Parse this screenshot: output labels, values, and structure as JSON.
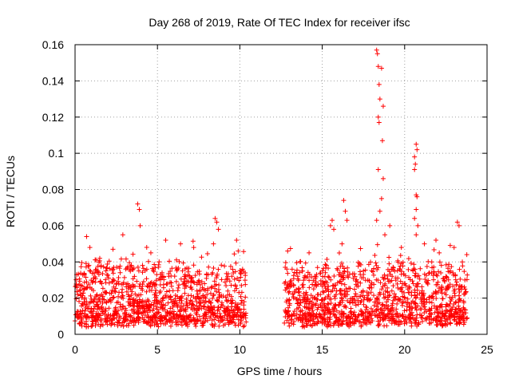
{
  "chart_data": {
    "type": "scatter",
    "title": "Day 268 of 2019, Rate Of TEC Index for receiver ifsc",
    "xlabel": "GPS time / hours",
    "ylabel": "ROTI / TECUs",
    "xlim": [
      0,
      25
    ],
    "ylim": [
      0,
      0.16
    ],
    "xticks": [
      0,
      5,
      10,
      15,
      20,
      25
    ],
    "yticks": [
      0,
      0.02,
      0.04,
      0.06,
      0.08,
      0.1,
      0.12,
      0.14,
      0.16
    ],
    "x_tick_labels": [
      "0",
      "5",
      "10",
      "15",
      "20",
      "25"
    ],
    "y_tick_labels": [
      "0",
      "0.02",
      "0.04",
      "0.06",
      "0.08",
      "0.1",
      "0.12",
      "0.14",
      "0.16"
    ],
    "grid": true,
    "marker": "+",
    "color": "#ff0000",
    "data_gap_hours": [
      10.4,
      12.7
    ],
    "highlights": [
      {
        "x": 0.1,
        "y": 0.033
      },
      {
        "x": 0.7,
        "y": 0.054
      },
      {
        "x": 0.9,
        "y": 0.048
      },
      {
        "x": 1.5,
        "y": 0.042
      },
      {
        "x": 2.3,
        "y": 0.047
      },
      {
        "x": 2.9,
        "y": 0.055
      },
      {
        "x": 3.8,
        "y": 0.072
      },
      {
        "x": 3.9,
        "y": 0.069
      },
      {
        "x": 3.95,
        "y": 0.06
      },
      {
        "x": 4.6,
        "y": 0.045
      },
      {
        "x": 5.5,
        "y": 0.052
      },
      {
        "x": 6.4,
        "y": 0.05
      },
      {
        "x": 7.2,
        "y": 0.048
      },
      {
        "x": 8.5,
        "y": 0.064
      },
      {
        "x": 8.6,
        "y": 0.062
      },
      {
        "x": 8.7,
        "y": 0.058
      },
      {
        "x": 8.4,
        "y": 0.05
      },
      {
        "x": 9.8,
        "y": 0.052
      },
      {
        "x": 9.9,
        "y": 0.046
      },
      {
        "x": 12.9,
        "y": 0.046
      },
      {
        "x": 13.8,
        "y": 0.035
      },
      {
        "x": 14.2,
        "y": 0.045
      },
      {
        "x": 15.5,
        "y": 0.06
      },
      {
        "x": 15.6,
        "y": 0.063
      },
      {
        "x": 15.7,
        "y": 0.058
      },
      {
        "x": 16.3,
        "y": 0.074
      },
      {
        "x": 16.4,
        "y": 0.068
      },
      {
        "x": 16.5,
        "y": 0.063
      },
      {
        "x": 16.2,
        "y": 0.05
      },
      {
        "x": 17.5,
        "y": 0.035
      },
      {
        "x": 18.3,
        "y": 0.157
      },
      {
        "x": 18.35,
        "y": 0.155
      },
      {
        "x": 18.4,
        "y": 0.148
      },
      {
        "x": 18.45,
        "y": 0.138
      },
      {
        "x": 18.5,
        "y": 0.13
      },
      {
        "x": 18.4,
        "y": 0.12
      },
      {
        "x": 18.45,
        "y": 0.117
      },
      {
        "x": 18.6,
        "y": 0.147
      },
      {
        "x": 18.7,
        "y": 0.126
      },
      {
        "x": 18.65,
        "y": 0.107
      },
      {
        "x": 18.4,
        "y": 0.091
      },
      {
        "x": 18.7,
        "y": 0.086
      },
      {
        "x": 18.6,
        "y": 0.075
      },
      {
        "x": 18.5,
        "y": 0.068
      },
      {
        "x": 18.3,
        "y": 0.063
      },
      {
        "x": 19.1,
        "y": 0.06
      },
      {
        "x": 18.8,
        "y": 0.055
      },
      {
        "x": 20.7,
        "y": 0.105
      },
      {
        "x": 20.75,
        "y": 0.102
      },
      {
        "x": 20.6,
        "y": 0.098
      },
      {
        "x": 20.65,
        "y": 0.094
      },
      {
        "x": 20.6,
        "y": 0.091
      },
      {
        "x": 20.7,
        "y": 0.077
      },
      {
        "x": 20.75,
        "y": 0.076
      },
      {
        "x": 20.7,
        "y": 0.069
      },
      {
        "x": 20.6,
        "y": 0.064
      },
      {
        "x": 20.8,
        "y": 0.06
      },
      {
        "x": 20.7,
        "y": 0.055
      },
      {
        "x": 19.8,
        "y": 0.048
      },
      {
        "x": 21.2,
        "y": 0.05
      },
      {
        "x": 21.9,
        "y": 0.052
      },
      {
        "x": 22.1,
        "y": 0.045
      },
      {
        "x": 23.2,
        "y": 0.062
      },
      {
        "x": 23.3,
        "y": 0.06
      },
      {
        "x": 23.0,
        "y": 0.048
      },
      {
        "x": 23.5,
        "y": 0.04
      }
    ]
  }
}
